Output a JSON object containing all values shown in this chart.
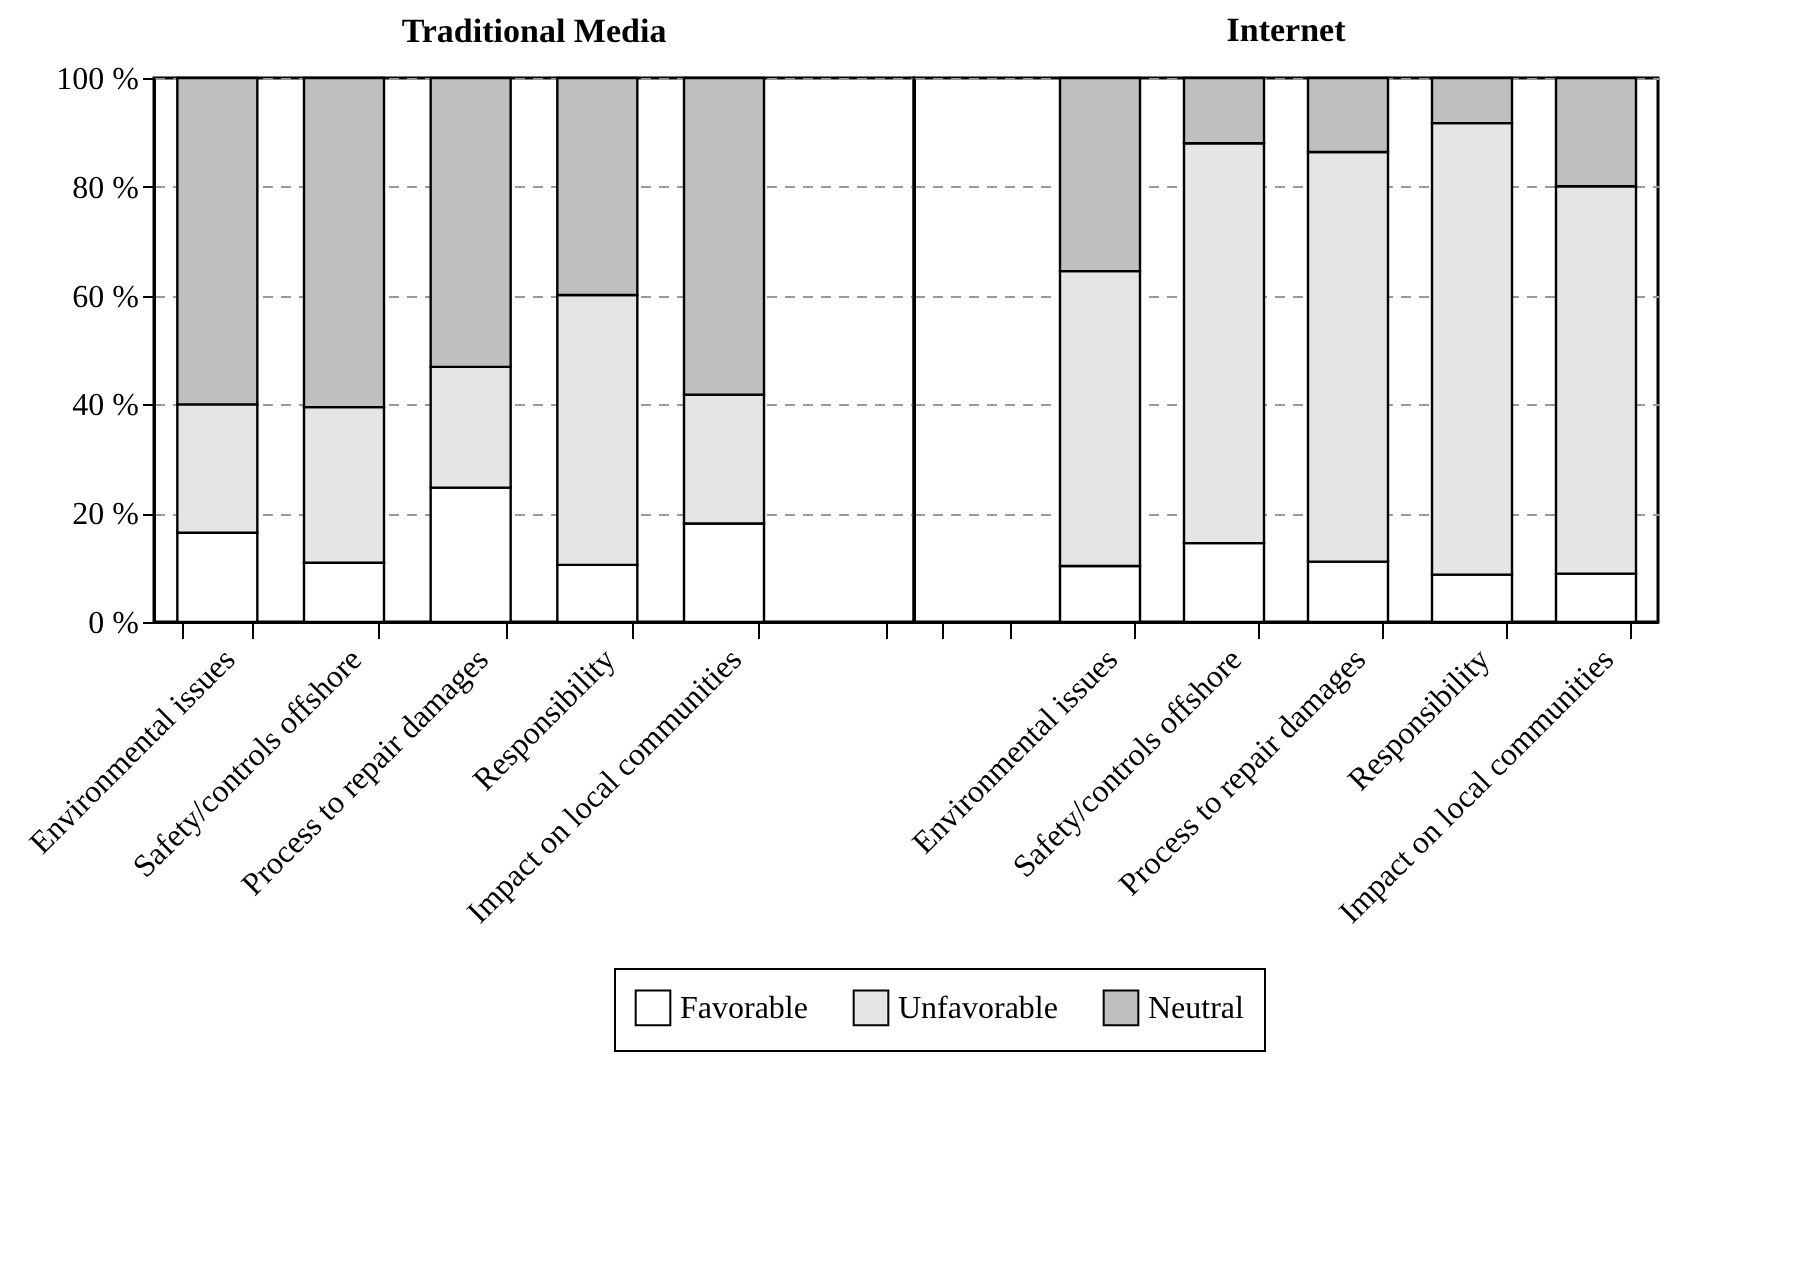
{
  "chart_data": [
    {
      "type": "bar",
      "title": "Traditional Media",
      "stacked": true,
      "categories": [
        "Environmental issues",
        "Safety/controls offshore",
        "Process to repair damages",
        "Responsibility",
        "Impact on local communities",
        null
      ],
      "series": [
        {
          "name": "Favorable",
          "color": "#ffffff",
          "values": [
            16.4,
            10.9,
            24.7,
            10.5,
            18.1,
            null
          ]
        },
        {
          "name": "Unfavorable",
          "color": "#e5e5e5",
          "values": [
            23.6,
            28.6,
            22.2,
            49.6,
            23.7,
            null
          ]
        },
        {
          "name": "Neutral",
          "color": "#bfbfbf",
          "values": [
            60.0,
            60.5,
            53.1,
            39.9,
            58.2,
            null
          ]
        }
      ],
      "ylim": [
        0,
        100
      ],
      "yticks": [
        {
          "value": 0,
          "label": "0 %"
        },
        {
          "value": 20,
          "label": "20 %"
        },
        {
          "value": 40,
          "label": "40 %"
        },
        {
          "value": 60,
          "label": "60 %"
        },
        {
          "value": 80,
          "label": "80 %"
        },
        {
          "value": 100,
          "label": "100 %"
        }
      ],
      "grid": "y",
      "legend": "bottom"
    },
    {
      "type": "bar",
      "title": "Internet",
      "stacked": true,
      "categories": [
        null,
        "Environmental issues",
        "Safety/controls offshore",
        "Process to repair damages",
        "Responsibility",
        "Impact on local communities"
      ],
      "yticks": [
        0,
        20,
        40,
        60,
        80,
        100
      ],
      "series": [
        {
          "name": "Favorable",
          "color": "#ffffff",
          "values": [
            null,
            10.3,
            14.5,
            11.1,
            8.7,
            8.9
          ]
        },
        {
          "name": "Unfavorable",
          "color": "#e5e5e5",
          "values": [
            null,
            54.2,
            73.5,
            75.3,
            83.0,
            71.2
          ]
        },
        {
          "name": "Neutral",
          "color": "#bfbfbf",
          "values": [
            null,
            35.5,
            12.0,
            13.6,
            8.3,
            19.9
          ]
        }
      ],
      "ylim": [
        0,
        100
      ],
      "grid": "y",
      "legend": "bottom",
      "tick_labels": "x"
    }
  ]
}
